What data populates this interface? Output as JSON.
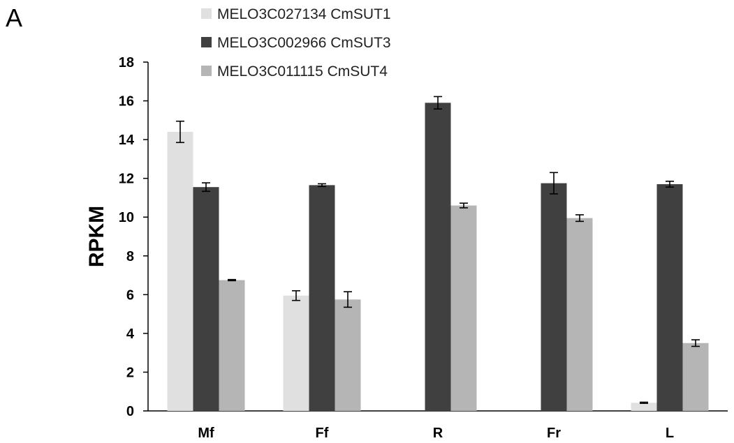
{
  "panel_label": "A",
  "chart_data": {
    "type": "bar",
    "title": "",
    "xlabel": "",
    "ylabel": "RPKM",
    "ylim": [
      0,
      18
    ],
    "yticks": [
      "0",
      "2",
      "4",
      "6",
      "8",
      "10",
      "12",
      "14",
      "16",
      "18"
    ],
    "categories": [
      "Mf",
      "Ff",
      "R",
      "Fr",
      "L"
    ],
    "grid": false,
    "legend_position": "top-left",
    "series": [
      {
        "name": "MELO3C027134 CmSUT1",
        "color": "#e0e0e0",
        "values": [
          14.4,
          5.95,
          0,
          0,
          0.42
        ],
        "errors": [
          0.55,
          0.25,
          0,
          0,
          0.03
        ]
      },
      {
        "name": "MELO3C002966 CmSUT3",
        "color": "#404040",
        "values": [
          11.55,
          11.65,
          15.9,
          11.75,
          11.7
        ],
        "errors": [
          0.22,
          0.07,
          0.32,
          0.55,
          0.15
        ]
      },
      {
        "name": "MELO3C011115 CmSUT4",
        "color": "#b5b5b5",
        "values": [
          6.75,
          5.75,
          10.6,
          9.95,
          3.5
        ],
        "errors": [
          0.03,
          0.4,
          0.12,
          0.17,
          0.17
        ]
      }
    ]
  }
}
